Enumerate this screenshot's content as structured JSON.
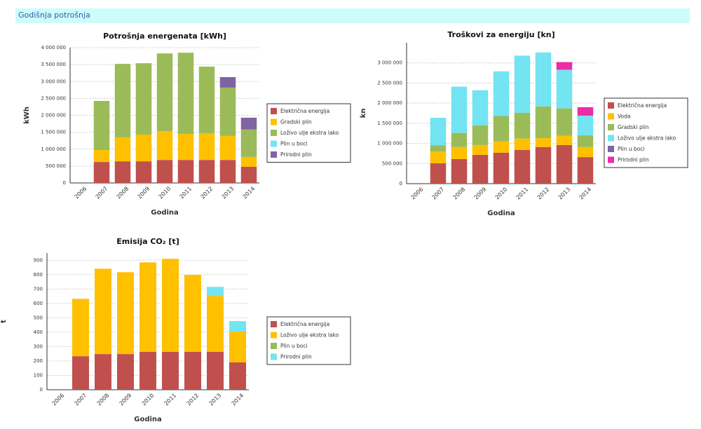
{
  "header": {
    "title": "Godišnja potrošnja"
  },
  "chart_data": [
    {
      "type": "bar",
      "stacked": true,
      "title": "Potrošnja energenata [kWh]",
      "ylabel": "kWh",
      "xlabel": "Godina",
      "categories": [
        "2006",
        "2007",
        "2008",
        "2009",
        "2010",
        "2011",
        "2012",
        "2013",
        "2014"
      ],
      "ylim": [
        0,
        4000000
      ],
      "yticks": [
        0,
        {
          "value": 500000,
          "label": "500 000"
        },
        {
          "value": 1000000,
          "label": "1 000 000"
        },
        {
          "value": 1500000,
          "label": "1 500 000"
        },
        {
          "value": 2000000,
          "label": "2 000 000"
        },
        {
          "value": 2500000,
          "label": "2 500 000"
        },
        {
          "value": 3000000,
          "label": "3 000 000"
        },
        {
          "value": 3500000,
          "label": "3 500 000"
        },
        {
          "value": 4000000,
          "label": "4 000 000"
        }
      ],
      "grid": true,
      "series": [
        {
          "name": "Električna energija",
          "color": "#c0504d",
          "values": [
            0,
            620000,
            640000,
            640000,
            680000,
            680000,
            680000,
            680000,
            480000
          ]
        },
        {
          "name": "Gradski plin",
          "color": "#ffc000",
          "values": [
            0,
            355000,
            710000,
            790000,
            850000,
            770000,
            790000,
            710000,
            290000
          ]
        },
        {
          "name": "Loživo ulje ekstra lako",
          "color": "#9bbb59",
          "values": [
            0,
            1450000,
            2170000,
            2110000,
            2300000,
            2400000,
            1970000,
            1430000,
            810000
          ]
        },
        {
          "name": "Plin u boci",
          "color": "#72e4f2",
          "values": [
            0,
            0,
            0,
            0,
            0,
            0,
            0,
            0,
            0
          ]
        },
        {
          "name": "Prirodni plin",
          "color": "#8064a2",
          "values": [
            0,
            0,
            0,
            0,
            0,
            0,
            0,
            310000,
            350000
          ]
        }
      ]
    },
    {
      "type": "bar",
      "stacked": true,
      "title": "Troškovi za energiju [kn]",
      "ylabel": "kn",
      "xlabel": "Godina",
      "categories": [
        "2006",
        "2007",
        "2008",
        "2009",
        "2010",
        "2011",
        "2012",
        "2013",
        "2014"
      ],
      "ylim": [
        0,
        3500000
      ],
      "yticks": [
        0,
        {
          "value": 500000,
          "label": "500 000"
        },
        {
          "value": 1000000,
          "label": "1 000 000"
        },
        {
          "value": 1500000,
          "label": "1 500 000"
        },
        {
          "value": 2000000,
          "label": "2 000 000"
        },
        {
          "value": 2500000,
          "label": "2 500 000"
        },
        {
          "value": 3000000,
          "label": "3 000 000"
        }
      ],
      "grid": true,
      "series": [
        {
          "name": "Električna energija",
          "color": "#c0504d",
          "values": [
            0,
            505000,
            610000,
            715000,
            770000,
            840000,
            910000,
            960000,
            660000
          ]
        },
        {
          "name": "Voda",
          "color": "#ffc000",
          "values": [
            0,
            295000,
            300000,
            245000,
            280000,
            280000,
            220000,
            230000,
            250000
          ]
        },
        {
          "name": "Gradski plin",
          "color": "#9bbb59",
          "values": [
            0,
            155000,
            350000,
            490000,
            630000,
            640000,
            790000,
            680000,
            290000
          ]
        },
        {
          "name": "Loživo ulje ekstra lako",
          "color": "#72e4f2",
          "values": [
            0,
            680000,
            1150000,
            870000,
            1110000,
            1420000,
            1340000,
            960000,
            490000
          ]
        },
        {
          "name": "Plin u boci",
          "color": "#8064a2",
          "values": [
            0,
            0,
            0,
            0,
            0,
            0,
            0,
            0,
            0
          ]
        },
        {
          "name": "Prirodni plin",
          "color": "#ee2ca8",
          "values": [
            0,
            0,
            0,
            0,
            0,
            0,
            0,
            190000,
            210000
          ]
        }
      ]
    },
    {
      "type": "bar",
      "stacked": true,
      "title": "Emisija CO₂ [t]",
      "ylabel": "t",
      "xlabel": "Godina",
      "categories": [
        "2006",
        "2007",
        "2008",
        "2009",
        "2010",
        "2011",
        "2012",
        "2013",
        "2014"
      ],
      "ylim": [
        0,
        950
      ],
      "yticks": [
        0,
        100,
        200,
        300,
        400,
        500,
        600,
        700,
        800,
        900
      ],
      "grid": true,
      "series": [
        {
          "name": "Električna energija",
          "color": "#c0504d",
          "values": [
            0,
            233,
            248,
            248,
            263,
            263,
            263,
            263,
            190
          ]
        },
        {
          "name": "Loživo ulje ekstra lako",
          "color": "#ffc000",
          "values": [
            0,
            399,
            593,
            569,
            622,
            647,
            535,
            389,
            214
          ]
        },
        {
          "name": "Plin u boci",
          "color": "#9bbb59",
          "values": [
            0,
            0,
            0,
            0,
            0,
            0,
            0,
            0,
            0
          ]
        },
        {
          "name": "Prirodni plin",
          "color": "#72e4f2",
          "values": [
            0,
            0,
            0,
            0,
            0,
            0,
            0,
            63,
            73
          ]
        }
      ]
    }
  ]
}
